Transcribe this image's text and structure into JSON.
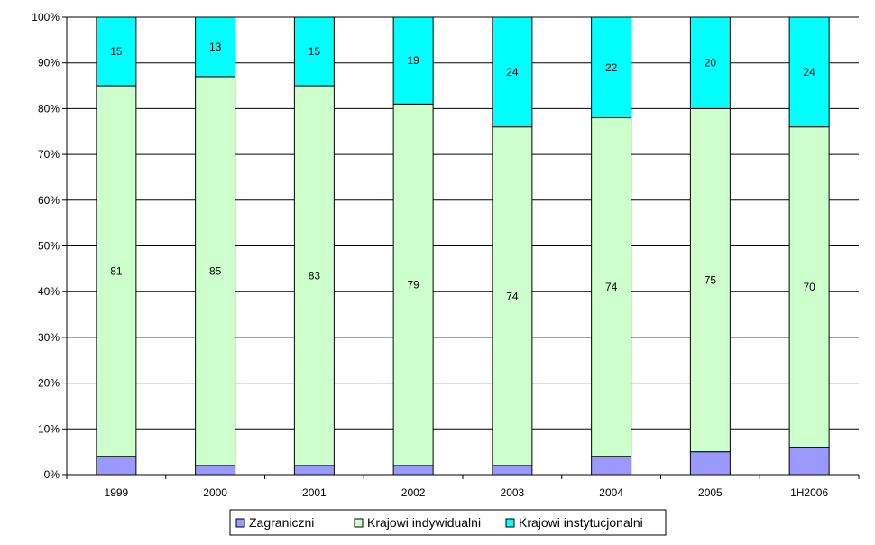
{
  "chart_data": {
    "type": "bar",
    "stacked": true,
    "percent": true,
    "categories": [
      "1999",
      "2000",
      "2001",
      "2002",
      "2003",
      "2004",
      "2005",
      "1H2006"
    ],
    "series": [
      {
        "name": "Zagraniczni",
        "values": [
          4,
          2,
          2,
          2,
          2,
          4,
          5,
          6
        ],
        "color": "#9999ff"
      },
      {
        "name": "Krajowi indywidualni",
        "values": [
          81,
          85,
          83,
          79,
          74,
          74,
          75,
          70
        ],
        "color": "#ccffcc"
      },
      {
        "name": "Krajowi instytucjonalni",
        "values": [
          15,
          13,
          15,
          19,
          24,
          22,
          20,
          24
        ],
        "color": "#00ffff"
      }
    ],
    "y_ticks": [
      "0%",
      "10%",
      "20%",
      "30%",
      "40%",
      "50%",
      "60%",
      "70%",
      "80%",
      "90%",
      "100%"
    ],
    "ylim": [
      0,
      100
    ],
    "grid": true,
    "legend_position": "bottom"
  }
}
